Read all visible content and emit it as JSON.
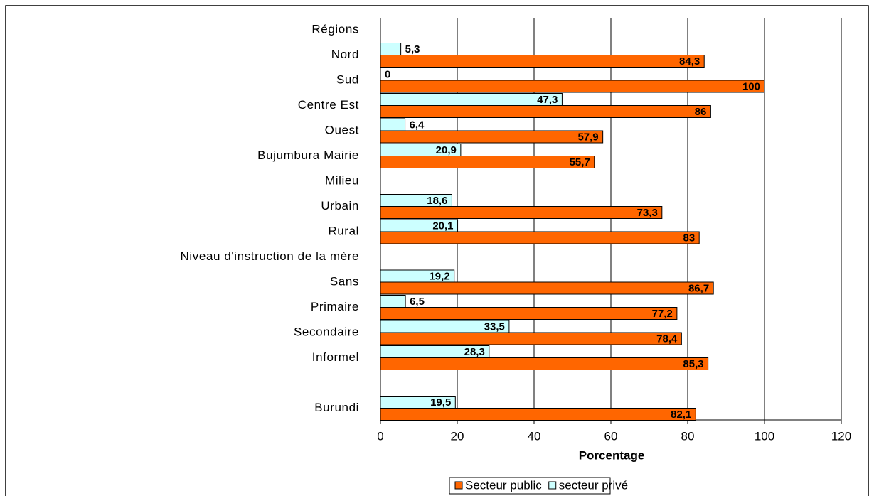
{
  "chart_data": {
    "type": "hbar",
    "xlabel": "Porcentage",
    "categories": [
      "Régions",
      "Nord",
      "Sud",
      "Centre Est",
      "Ouest",
      "Bujumbura Mairie",
      "Milieu",
      "Urbain",
      "Rural",
      "Niveau d'instruction de la mère",
      "Sans",
      "Primaire",
      "Secondaire",
      "Informel",
      null,
      "Burundi"
    ],
    "series": [
      {
        "name": "secteur privé",
        "color": "#ccffff",
        "label_color": "#000000",
        "values": [
          null,
          5.3,
          0,
          47.3,
          6.4,
          20.9,
          null,
          18.6,
          20.1,
          null,
          19.2,
          6.5,
          33.5,
          28.3,
          null,
          19.5
        ],
        "value_labels": [
          null,
          "5,3",
          "0",
          "47,3",
          "6,4",
          "20,9",
          null,
          "18,6",
          "20,1",
          null,
          "19,2",
          "6,5",
          "33,5",
          "28,3",
          null,
          "19,5"
        ]
      },
      {
        "name": "Secteur public",
        "color": "#ff6600",
        "label_color": "#ffffff",
        "values": [
          null,
          84.3,
          100,
          86,
          57.9,
          55.7,
          null,
          73.3,
          83,
          null,
          86.7,
          77.2,
          78.4,
          85.3,
          null,
          82.1
        ],
        "value_labels": [
          null,
          "84,3",
          "100",
          "86",
          "57,9",
          "55,7",
          null,
          "73,3",
          "83",
          null,
          "86,7",
          "77,2",
          "78,4",
          "85,3",
          null,
          "82,1"
        ]
      }
    ],
    "legend_order": [
      1,
      0
    ],
    "xlim": [
      0,
      120
    ],
    "xticks": [
      0,
      20,
      40,
      60,
      80,
      100,
      120
    ],
    "grid": true,
    "legend": "bottom"
  }
}
